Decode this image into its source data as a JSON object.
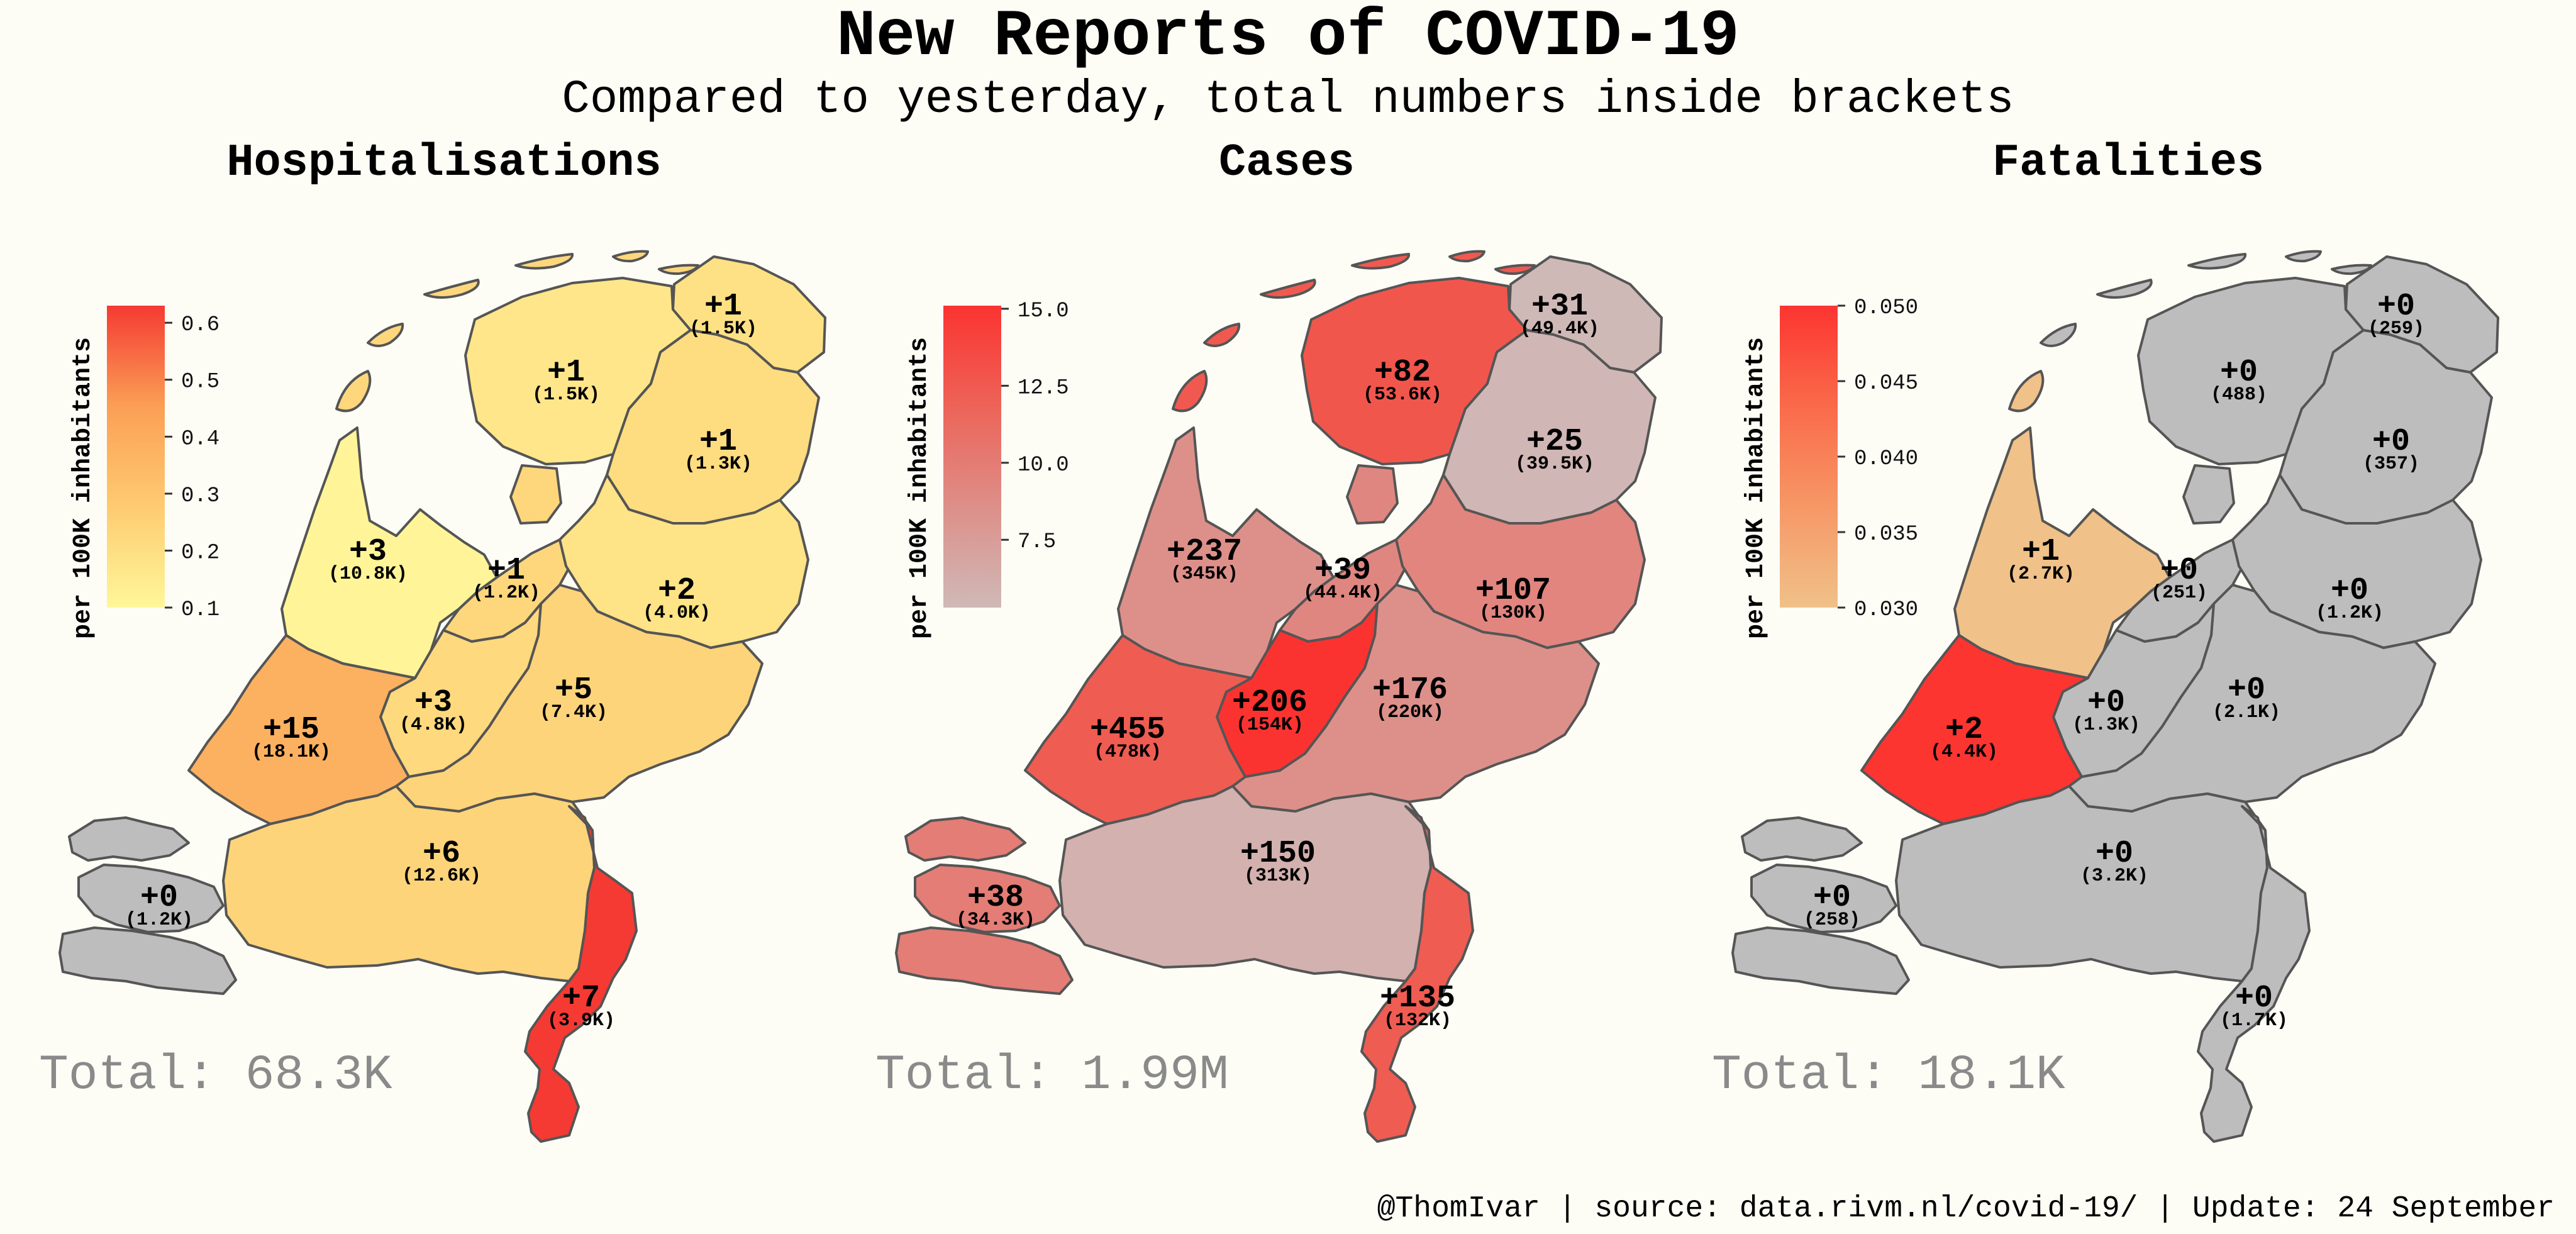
{
  "title": "New Reports of COVID-19",
  "subtitle": "Compared to yesterday, total numbers inside brackets",
  "footer": "@ThomIvar | source: data.rivm.nl/covid-19/ | Update: 24 September",
  "colors": {
    "background": "#fdfdf6",
    "missing": "#bdbdbd",
    "province_border": "#555555",
    "total_text": "#8a8a8a"
  },
  "panels": [
    {
      "id": "hospitalisations",
      "title": "Hospitalisations",
      "total": "Total: 68.3K",
      "colorbar": {
        "label": "per 100K inhabitants",
        "min": 0.1,
        "max": 0.63,
        "ticks": [
          "0.1",
          "0.2",
          "0.3",
          "0.4",
          "0.5",
          "0.6"
        ],
        "tick_values": [
          0.1,
          0.2,
          0.3,
          0.4,
          0.5,
          0.6
        ],
        "colors": [
          "#fff79a",
          "#fecb71",
          "#fb9f55",
          "#f53a33"
        ]
      },
      "provinces": {
        "groningen": {
          "change": "+1",
          "total": "(1.5K)",
          "value": 0.19
        },
        "friesland": {
          "change": "+1",
          "total": "(1.5K)",
          "value": 0.17
        },
        "drenthe": {
          "change": "+1",
          "total": "(1.3K)",
          "value": 0.21
        },
        "noord-holland": {
          "change": "+3",
          "total": "(10.8K)",
          "value": 0.11
        },
        "flevoland": {
          "change": "+1",
          "total": "(1.2K)",
          "value": 0.23
        },
        "overijssel": {
          "change": "+2",
          "total": "(4.0K)",
          "value": 0.18
        },
        "gelderland": {
          "change": "+5",
          "total": "(7.4K)",
          "value": 0.24
        },
        "utrecht": {
          "change": "+3",
          "total": "(4.8K)",
          "value": 0.22
        },
        "zuid-holland": {
          "change": "+15",
          "total": "(18.1K)",
          "value": 0.38
        },
        "zeeland": {
          "change": "+0",
          "total": "(1.2K)",
          "value": null
        },
        "noord-brabant": {
          "change": "+6",
          "total": "(12.6K)",
          "value": 0.24
        },
        "limburg": {
          "change": "+7",
          "total": "(3.9K)",
          "value": 0.63
        }
      }
    },
    {
      "id": "cases",
      "title": "Cases",
      "total": "Total: 1.99M",
      "colorbar": {
        "label": "per 100K inhabitants",
        "min": 5.3,
        "max": 15.1,
        "ticks": [
          "7.5",
          "10.0",
          "12.5",
          "15.0"
        ],
        "tick_values": [
          7.5,
          10.0,
          12.5,
          15.0
        ],
        "colors": [
          "#cfb9b7",
          "#dd8f89",
          "#ed6358",
          "#fb3330"
        ]
      },
      "provinces": {
        "groningen": {
          "change": "+31",
          "total": "(49.4K)",
          "value": 5.3
        },
        "friesland": {
          "change": "+82",
          "total": "(53.6K)",
          "value": 12.7
        },
        "drenthe": {
          "change": "+25",
          "total": "(39.5K)",
          "value": 5.5
        },
        "noord-holland": {
          "change": "+237",
          "total": "(345K)",
          "value": 8.5
        },
        "flevoland": {
          "change": "+39",
          "total": "(44.4K)",
          "value": 9.2
        },
        "overijssel": {
          "change": "+107",
          "total": "(130K)",
          "value": 9.3
        },
        "gelderland": {
          "change": "+176",
          "total": "(220K)",
          "value": 8.5
        },
        "utrecht": {
          "change": "+206",
          "total": "(154K)",
          "value": 15.1
        },
        "zuid-holland": {
          "change": "+455",
          "total": "(478K)",
          "value": 12.3
        },
        "zeeland": {
          "change": "+38",
          "total": "(34.3K)",
          "value": 9.9
        },
        "noord-brabant": {
          "change": "+150",
          "total": "(313K)",
          "value": 5.9
        },
        "limburg": {
          "change": "+135",
          "total": "(132K)",
          "value": 12.3
        }
      }
    },
    {
      "id": "fatalities",
      "title": "Fatalities",
      "total": "Total: 18.1K",
      "colorbar": {
        "label": "per 100K inhabitants",
        "min": 0.03,
        "max": 0.05,
        "ticks": [
          "0.030",
          "0.035",
          "0.040",
          "0.045",
          "0.050"
        ],
        "tick_values": [
          0.03,
          0.035,
          0.04,
          0.045,
          0.05
        ],
        "colors": [
          "#f0c189",
          "#f69866",
          "#fa6a4a",
          "#fc3531"
        ]
      },
      "provinces": {
        "groningen": {
          "change": "+0",
          "total": "(259)",
          "value": null
        },
        "friesland": {
          "change": "+0",
          "total": "(488)",
          "value": null
        },
        "drenthe": {
          "change": "+0",
          "total": "(357)",
          "value": null
        },
        "noord-holland": {
          "change": "+1",
          "total": "(2.7K)",
          "value": 0.03
        },
        "flevoland": {
          "change": "+0",
          "total": "(251)",
          "value": null
        },
        "overijssel": {
          "change": "+0",
          "total": "(1.2K)",
          "value": null
        },
        "gelderland": {
          "change": "+0",
          "total": "(2.1K)",
          "value": null
        },
        "utrecht": {
          "change": "+0",
          "total": "(1.3K)",
          "value": null
        },
        "zuid-holland": {
          "change": "+2",
          "total": "(4.4K)",
          "value": 0.05
        },
        "zeeland": {
          "change": "+0",
          "total": "(258)",
          "value": null
        },
        "noord-brabant": {
          "change": "+0",
          "total": "(3.2K)",
          "value": null
        },
        "limburg": {
          "change": "+0",
          "total": "(1.7K)",
          "value": null
        }
      }
    }
  ]
}
